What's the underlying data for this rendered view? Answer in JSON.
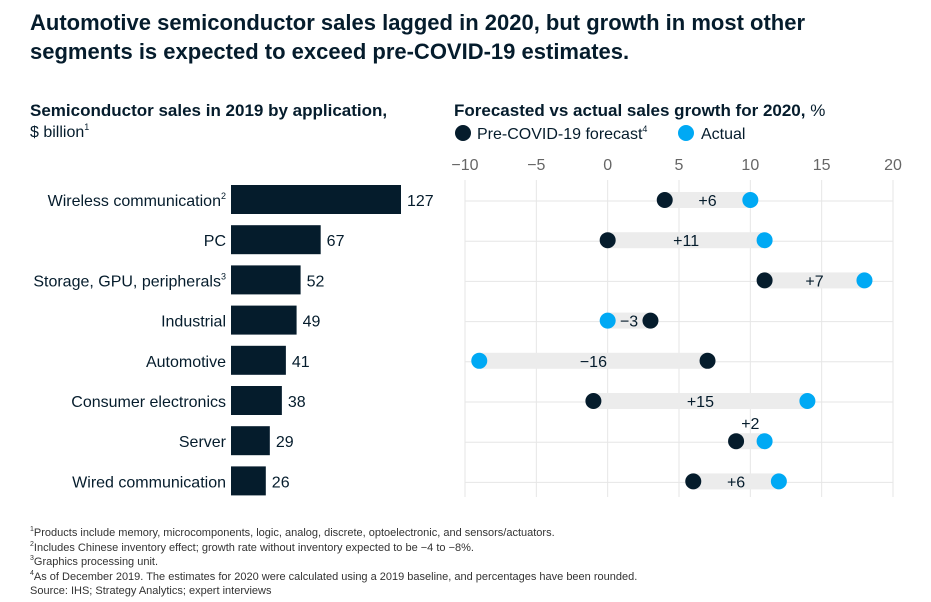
{
  "title": "Automotive semiconductor sales lagged in 2020, but growth in most other segments is expected to exceed pre-COVID-19 estimates.",
  "colors": {
    "bar": "#051c2c",
    "forecast": "#051c2c",
    "actual": "#00a9f4",
    "connector": "#ececec",
    "grid": "#e6e6e6"
  },
  "chart_data": [
    {
      "type": "bar",
      "orientation": "horizontal",
      "title": "Semiconductor sales in 2019 by application,",
      "unit": "$ billion",
      "unit_sup": "1",
      "categories": [
        "Wireless communication",
        "PC",
        "Storage, GPU, peripherals",
        "Industrial",
        "Automotive",
        "Consumer electronics",
        "Server",
        "Wired communication"
      ],
      "category_sups": [
        "2",
        "",
        "3",
        "",
        "",
        "",
        "",
        ""
      ],
      "values": [
        127,
        67,
        52,
        49,
        41,
        38,
        29,
        26
      ]
    },
    {
      "type": "scatter",
      "subtype": "dumbbell",
      "title": "Forecasted vs actual sales growth for 2020,",
      "unit": "%",
      "xlim": [
        -10,
        20
      ],
      "xticks": [
        "−10",
        "−5",
        "0",
        "5",
        "10",
        "15",
        "20"
      ],
      "xtick_values": [
        -10,
        -5,
        0,
        5,
        10,
        15,
        20
      ],
      "grid": true,
      "legend": {
        "position": "top-left",
        "entries": [
          "Pre-COVID-19 forecast",
          "Actual"
        ],
        "sup": "4"
      },
      "categories": [
        "Wireless communication",
        "PC",
        "Storage, GPU, peripherals",
        "Industrial",
        "Automotive",
        "Consumer electronics",
        "Server",
        "Wired communication"
      ],
      "series": [
        {
          "name": "Pre-COVID-19 forecast",
          "values": [
            4,
            0,
            11,
            3,
            7,
            -1,
            9,
            6
          ]
        },
        {
          "name": "Actual",
          "values": [
            10,
            11,
            18,
            0,
            -9,
            14,
            11,
            12
          ]
        }
      ],
      "difference_labels": [
        "+6",
        "+11",
        "+7",
        "−3",
        "−16",
        "+15",
        "+2",
        "+6"
      ]
    }
  ],
  "footnotes": [
    {
      "sup": "1",
      "text": "Products include memory, microcomponents, logic, analog, discrete, optoelectronic, and sensors/actuators."
    },
    {
      "sup": "2",
      "text": "Includes Chinese inventory effect; growth rate without inventory expected to be −4 to −8%."
    },
    {
      "sup": "3",
      "text": "Graphics processing unit."
    },
    {
      "sup": "4",
      "text": "As of December 2019. The estimates for 2020 were calculated using a 2019 baseline, and percentages have been rounded."
    },
    {
      "sup": "",
      "text": "Source: IHS; Strategy Analytics; expert interviews"
    }
  ]
}
